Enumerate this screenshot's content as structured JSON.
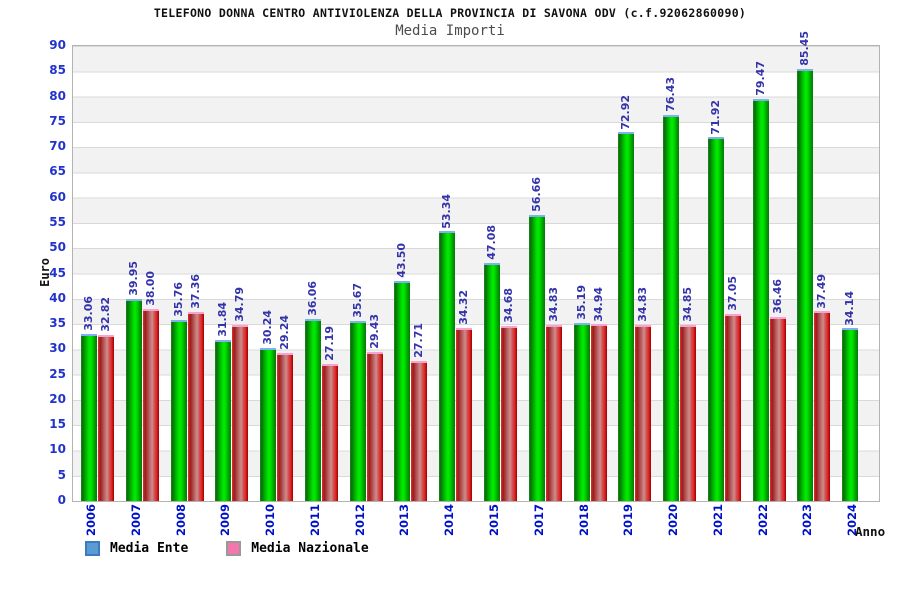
{
  "header": {
    "title": "TELEFONO DONNA CENTRO ANTIVIOLENZA DELLA PROVINCIA DI SAVONA ODV (c.f.92062860090)",
    "subtitle": "Media Importi"
  },
  "axes": {
    "y_label": "Euro",
    "x_label": "Anno"
  },
  "legend": {
    "items": [
      {
        "label": "Media Ente",
        "swatch_fill": "#5b9bd5",
        "swatch_border": "#3a7abd"
      },
      {
        "label": "Media Nazionale",
        "swatch_fill": "#f177ad",
        "swatch_border": "#999999"
      }
    ]
  },
  "colors": {
    "series_media_ente": "#00cc00",
    "series_media_nazionale": "#cc2222",
    "value_label": "#3333aa",
    "tick_label": "#2233cc",
    "year_label": "#0011cc",
    "band_gray": "#f2f2f2",
    "grid_line": "#d9d9d9"
  },
  "chart_data": {
    "type": "bar",
    "title": "Media Importi",
    "xlabel": "Anno",
    "ylabel": "Euro",
    "ylim": [
      0,
      90
    ],
    "ytick_step": 5,
    "yticks": [
      0,
      5,
      10,
      15,
      20,
      25,
      30,
      35,
      40,
      45,
      50,
      55,
      60,
      65,
      70,
      75,
      80,
      85,
      90
    ],
    "grid": "horizontal-bands",
    "legend_position": "bottom-left",
    "categories": [
      "2006",
      "2007",
      "2008",
      "2009",
      "2010",
      "2011",
      "2012",
      "2013",
      "2014",
      "2015",
      "2017",
      "2018",
      "2019",
      "2020",
      "2021",
      "2022",
      "2023",
      "2024"
    ],
    "series": [
      {
        "name": "Media Ente",
        "values": [
          33.06,
          39.95,
          35.76,
          31.84,
          30.24,
          36.06,
          35.67,
          43.5,
          53.34,
          47.08,
          56.66,
          35.19,
          72.92,
          76.43,
          71.92,
          79.47,
          85.45,
          34.14
        ]
      },
      {
        "name": "Media Nazionale",
        "values": [
          32.82,
          38.0,
          37.36,
          34.79,
          29.24,
          27.19,
          29.43,
          27.71,
          34.32,
          34.68,
          34.83,
          34.94,
          34.83,
          34.85,
          37.05,
          36.46,
          37.49,
          null
        ]
      }
    ]
  }
}
